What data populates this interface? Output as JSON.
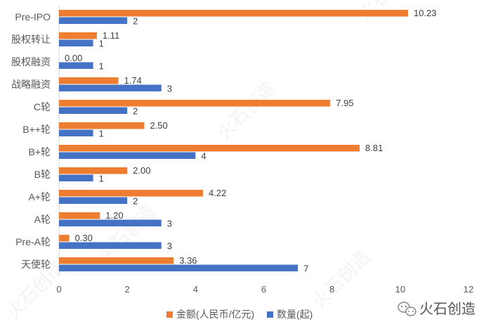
{
  "chart_data": {
    "type": "bar",
    "orientation": "horizontal",
    "categories": [
      "Pre-IPO",
      "股权转让",
      "股权融资",
      "战略融资",
      "C轮",
      "B++轮",
      "B+轮",
      "B轮",
      "A+轮",
      "A轮",
      "Pre-A轮",
      "天使轮"
    ],
    "series": [
      {
        "name": "金额(人民币/亿元)",
        "color": "#ED7D31",
        "values": [
          10.23,
          1.11,
          0.0,
          1.74,
          7.95,
          2.5,
          8.81,
          2.0,
          4.22,
          1.2,
          0.3,
          3.36
        ],
        "labels": [
          "10.23",
          "1.11",
          "0.00",
          "1.74",
          "7.95",
          "2.50",
          "8.81",
          "2.00",
          "4.22",
          "1.20",
          "0.30",
          "3.36"
        ]
      },
      {
        "name": "数量(起)",
        "color": "#4472C4",
        "values": [
          2,
          1,
          1,
          3,
          2,
          1,
          4,
          1,
          2,
          3,
          3,
          7
        ],
        "labels": [
          "2",
          "1",
          "1",
          "3",
          "2",
          "1",
          "4",
          "1",
          "2",
          "3",
          "3",
          "7"
        ]
      }
    ],
    "xlim": [
      0,
      12
    ],
    "xticks": [
      "0",
      "2",
      "4",
      "6",
      "8",
      "10",
      "12"
    ],
    "grid": false,
    "legend_position": "bottom"
  },
  "watermark": {
    "brand_text": "火石创造",
    "icon": "wechat-icon"
  }
}
